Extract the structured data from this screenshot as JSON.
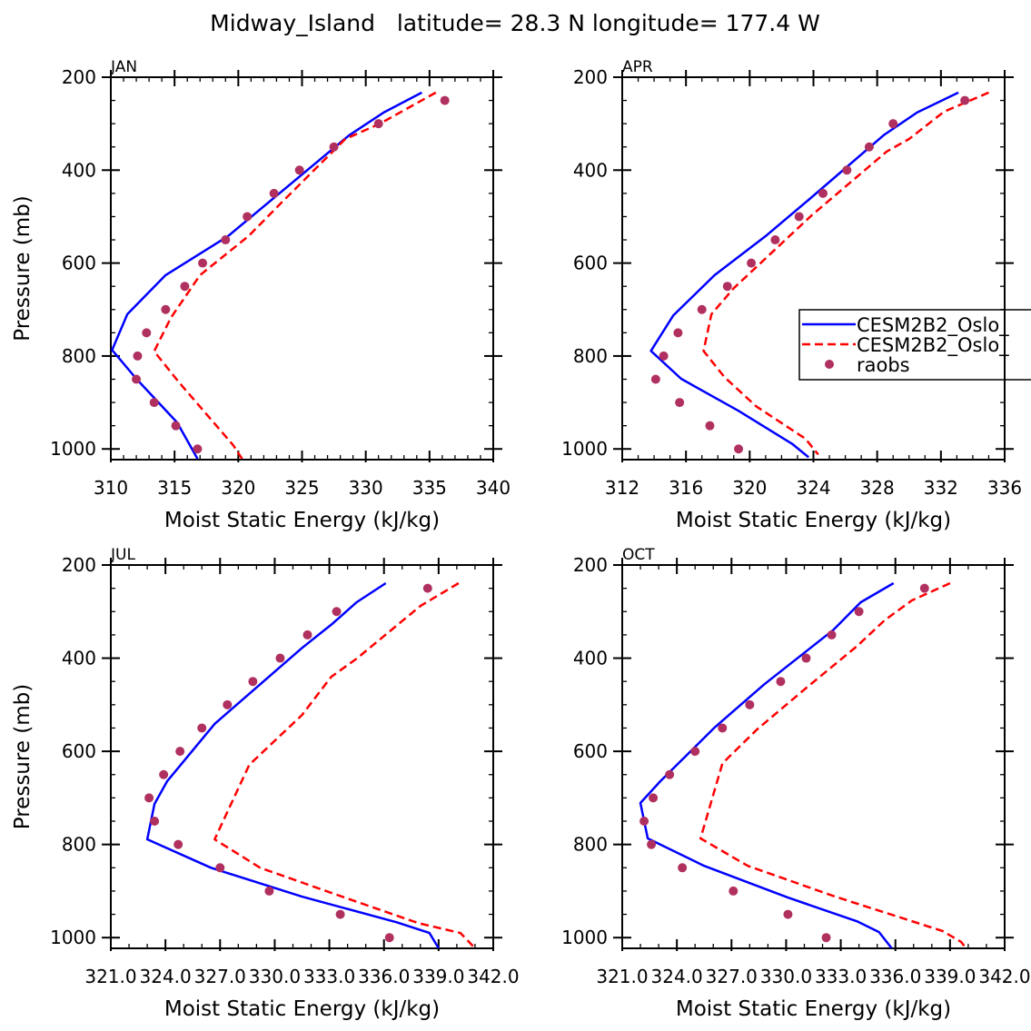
{
  "chart_data": {
    "title": "Midway_Island   latitude= 28.3 N longitude= 177.4 W",
    "type": "line",
    "legend": {
      "placement": "right-middle of APR panel (clipped)",
      "entries": [
        {
          "label": "CESM2B2_Oslo_",
          "style": "solid",
          "color": "#0000ff"
        },
        {
          "label": "CESM2B2_Oslo_",
          "style": "dashed",
          "color": "#ff0000"
        },
        {
          "label": "raobs",
          "style": "marker",
          "color": "#b03060"
        }
      ]
    },
    "panels": [
      {
        "label": "JAN",
        "xlabel": "Moist Static Energy (kJ/kg)",
        "ylabel": "Pressure (mb)",
        "xlim": [
          310,
          340
        ],
        "xticks": [
          310,
          315,
          320,
          325,
          330,
          335,
          340
        ],
        "xtick_labels": [
          "310",
          "315",
          "320",
          "325",
          "330",
          "335",
          "340"
        ],
        "xminor": 1,
        "ylim": [
          200,
          1023
        ],
        "yticks": [
          200,
          400,
          600,
          800,
          1000
        ],
        "ytick_labels": [
          "200",
          "400",
          "600",
          "800",
          "1000"
        ],
        "yminor": 50,
        "series": [
          {
            "name": "CESM2B2_Oslo_ (solid)",
            "p": [
              233,
              276,
              325,
              542,
              626,
              710,
              787,
              849,
              943,
              1021
            ],
            "mse": [
              334.4,
              331.4,
              328.7,
              319.2,
              314.3,
              311.3,
              310.1,
              312.0,
              315.2,
              316.8
            ]
          },
          {
            "name": "CESM2B2_Oslo_ (dashed)",
            "p": [
              233,
              300,
              333,
              464,
              542,
              626,
              718,
              790,
              855,
              992,
              1021
            ],
            "mse": [
              335.5,
              331.1,
              328.4,
              323.6,
              320.8,
              317.0,
              314.7,
              313.4,
              315.3,
              319.6,
              320.3
            ]
          },
          {
            "name": "raobs",
            "p": [
              250,
              300,
              350,
              400,
              450,
              500,
              550,
              600,
              650,
              700,
              750,
              800,
              850,
              900,
              950,
              1000
            ],
            "mse": [
              336.2,
              331.0,
              327.5,
              324.8,
              322.8,
              320.7,
              319.0,
              317.2,
              315.8,
              314.3,
              312.8,
              312.1,
              312.0,
              313.4,
              315.1,
              316.8
            ]
          }
        ]
      },
      {
        "label": "APR",
        "xlabel": "Moist Static Energy (kJ/kg)",
        "ylabel": "",
        "xlim": [
          312,
          336
        ],
        "xticks": [
          312,
          316,
          320,
          324,
          328,
          332,
          336
        ],
        "xtick_labels": [
          "312",
          "316",
          "320",
          "324",
          "328",
          "332",
          "336"
        ],
        "xminor": 1,
        "ylim": [
          200,
          1023
        ],
        "yticks": [
          200,
          400,
          600,
          800,
          1000
        ],
        "ytick_labels": [
          "200",
          "400",
          "600",
          "800",
          "1000"
        ],
        "yminor": 50,
        "series": [
          {
            "name": "CESM2B2_Oslo_ (solid)",
            "p": [
              233,
              276,
              325,
              464,
              542,
              626,
              713,
              789,
              849,
              918,
              990,
              1018
            ],
            "mse": [
              333.1,
              330.5,
              328.4,
              323.7,
              321.0,
              317.8,
              315.2,
              313.8,
              315.7,
              319.3,
              322.7,
              323.7
            ]
          },
          {
            "name": "CESM2B2_Oslo_ (dashed)",
            "p": [
              233,
              274,
              333,
              360,
              497,
              654,
              710,
              789,
              845,
              908,
              978,
              1012
            ],
            "mse": [
              335.0,
              332.2,
              330.0,
              328.6,
              323.9,
              319.0,
              317.6,
              317.1,
              318.4,
              320.4,
              323.5,
              324.3
            ]
          },
          {
            "name": "raobs",
            "p": [
              250,
              300,
              350,
              400,
              450,
              500,
              550,
              600,
              650,
              700,
              750,
              800,
              850,
              900,
              950,
              1000
            ],
            "mse": [
              333.5,
              329.0,
              327.5,
              326.1,
              324.6,
              323.1,
              321.6,
              320.1,
              318.6,
              317.0,
              315.5,
              314.6,
              314.1,
              315.6,
              317.5,
              319.3
            ]
          }
        ]
      },
      {
        "label": "JUL",
        "xlabel": "Moist Static Energy (kJ/kg)",
        "ylabel": "Pressure (mb)",
        "xlim": [
          321,
          342
        ],
        "xticks": [
          321,
          324,
          327,
          330,
          333,
          336,
          339,
          342
        ],
        "xtick_labels": [
          "321.0",
          "324.0",
          "327.0",
          "330.0",
          "333.0",
          "336.0",
          "339.0",
          "342.0"
        ],
        "xminor": 1,
        "ylim": [
          200,
          1023
        ],
        "yticks": [
          200,
          400,
          600,
          800,
          1000
        ],
        "ytick_labels": [
          "200",
          "400",
          "600",
          "800",
          "1000"
        ],
        "yminor": 50,
        "series": [
          {
            "name": "CESM2B2_Oslo_ (solid)",
            "p": [
              239,
              280,
              325,
              378,
              541,
              664,
              713,
              789,
              850,
              912,
              967,
              990,
              1023
            ],
            "mse": [
              336.1,
              334.5,
              333.2,
              331.5,
              326.7,
              324.1,
              323.4,
              323.0,
              326.5,
              331.5,
              336.7,
              338.5,
              339.0
            ]
          },
          {
            "name": "CESM2B2_Oslo_ (dashed)",
            "p": [
              239,
              288,
              401,
              440,
              522,
              629,
              789,
              850,
              912,
              969,
              990,
              1023
            ],
            "mse": [
              340.1,
              338.0,
              334.5,
              333.1,
              331.5,
              328.6,
              326.7,
              329.2,
              333.7,
              337.9,
              340.2,
              341.0
            ]
          },
          {
            "name": "raobs",
            "p": [
              250,
              300,
              350,
              400,
              450,
              500,
              550,
              600,
              650,
              700,
              750,
              800,
              850,
              900,
              950,
              1000
            ],
            "mse": [
              338.4,
              333.4,
              331.8,
              330.3,
              328.8,
              327.4,
              326.0,
              324.8,
              323.9,
              323.1,
              323.4,
              324.7,
              327.0,
              329.7,
              333.6,
              336.3
            ]
          }
        ]
      },
      {
        "label": "OCT",
        "xlabel": "Moist Static Energy (kJ/kg)",
        "ylabel": "",
        "xlim": [
          321,
          342
        ],
        "xticks": [
          321,
          324,
          327,
          330,
          333,
          336,
          339,
          342
        ],
        "xtick_labels": [
          "321.0",
          "324.0",
          "327.0",
          "330.0",
          "333.0",
          "336.0",
          "339.0",
          "342.0"
        ],
        "xminor": 1,
        "ylim": [
          200,
          1023
        ],
        "yticks": [
          200,
          400,
          600,
          800,
          1000
        ],
        "ytick_labels": [
          "200",
          "400",
          "600",
          "800",
          "1000"
        ],
        "yminor": 50,
        "series": [
          {
            "name": "CESM2B2_Oslo_ (solid)",
            "p": [
              239,
              280,
              339,
              456,
              548,
              664,
              711,
              787,
              846,
              914,
              965,
              988,
              1023
            ],
            "mse": [
              335.9,
              334.1,
              332.6,
              328.8,
              326.1,
              323.1,
              322.0,
              322.4,
              325.5,
              330.1,
              333.9,
              335.1,
              335.8
            ]
          },
          {
            "name": "CESM2B2_Oslo_ (dashed)",
            "p": [
              239,
              276,
              319,
              374,
              464,
              553,
              626,
              787,
              846,
              912,
              986,
              1009,
              1023
            ],
            "mse": [
              339.0,
              336.9,
              335.4,
              333.9,
              331.1,
              328.4,
              326.5,
              325.3,
              327.9,
              332.7,
              338.6,
              339.6,
              339.9
            ]
          },
          {
            "name": "raobs",
            "p": [
              250,
              300,
              350,
              400,
              450,
              500,
              550,
              600,
              650,
              700,
              750,
              800,
              850,
              900,
              950,
              1000
            ],
            "mse": [
              337.6,
              334.0,
              332.5,
              331.1,
              329.7,
              328.0,
              326.5,
              325.0,
              323.6,
              322.7,
              322.2,
              322.6,
              324.3,
              327.1,
              330.1,
              332.2
            ]
          }
        ]
      }
    ]
  },
  "colors": {
    "model1": "#0000ff",
    "model2": "#ff0000",
    "obs": "#b03060",
    "axis": "#000000"
  }
}
